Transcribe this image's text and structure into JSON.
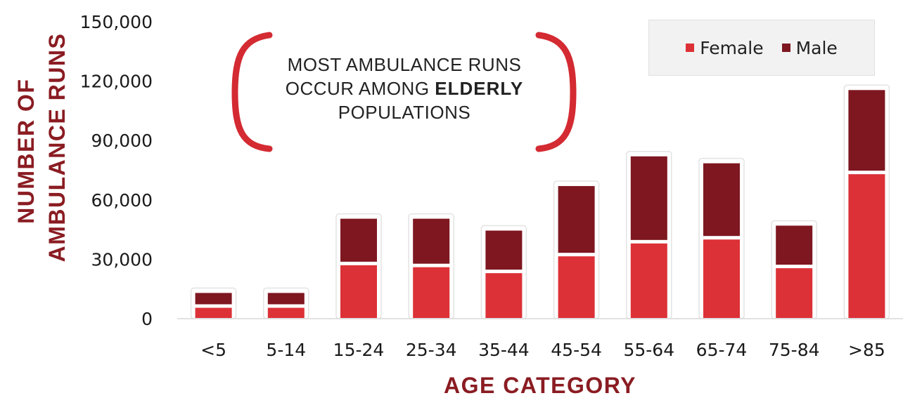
{
  "colors": {
    "female": "#dc3137",
    "male": "#7e1720",
    "accent": "#8a1c22",
    "bracket": "#d42a32"
  },
  "callout": {
    "line1": "MOST AMBULANCE RUNS",
    "line2_prefix": "OCCUR AMONG ",
    "line2_bold": "ELDERLY",
    "line3": "POPULATIONS"
  },
  "chart_data": {
    "type": "bar",
    "stacked": true,
    "categories": [
      "<5",
      "5-14",
      "15-24",
      "25-34",
      "35-44",
      "45-54",
      "55-64",
      "65-74",
      "75-84",
      ">85"
    ],
    "series": [
      {
        "name": "Female",
        "values": [
          5500,
          5500,
          27000,
          26000,
          23000,
          31500,
          38000,
          40000,
          25500,
          73000
        ]
      },
      {
        "name": "Male",
        "values": [
          7500,
          7500,
          23500,
          24500,
          21500,
          35500,
          44000,
          38500,
          21500,
          42500
        ]
      }
    ],
    "xlabel": "AGE CATEGORY",
    "ylabel_lines": [
      "NUMBER OF",
      "AMBULANCE RUNS"
    ],
    "ylim": [
      0,
      150000
    ],
    "yticks": [
      0,
      30000,
      60000,
      90000,
      120000,
      150000
    ],
    "ytick_labels": [
      "0",
      "30,000",
      "60,000",
      "90,000",
      "120,000",
      "150,000"
    ],
    "legend_position": "top-right",
    "grid": false
  }
}
